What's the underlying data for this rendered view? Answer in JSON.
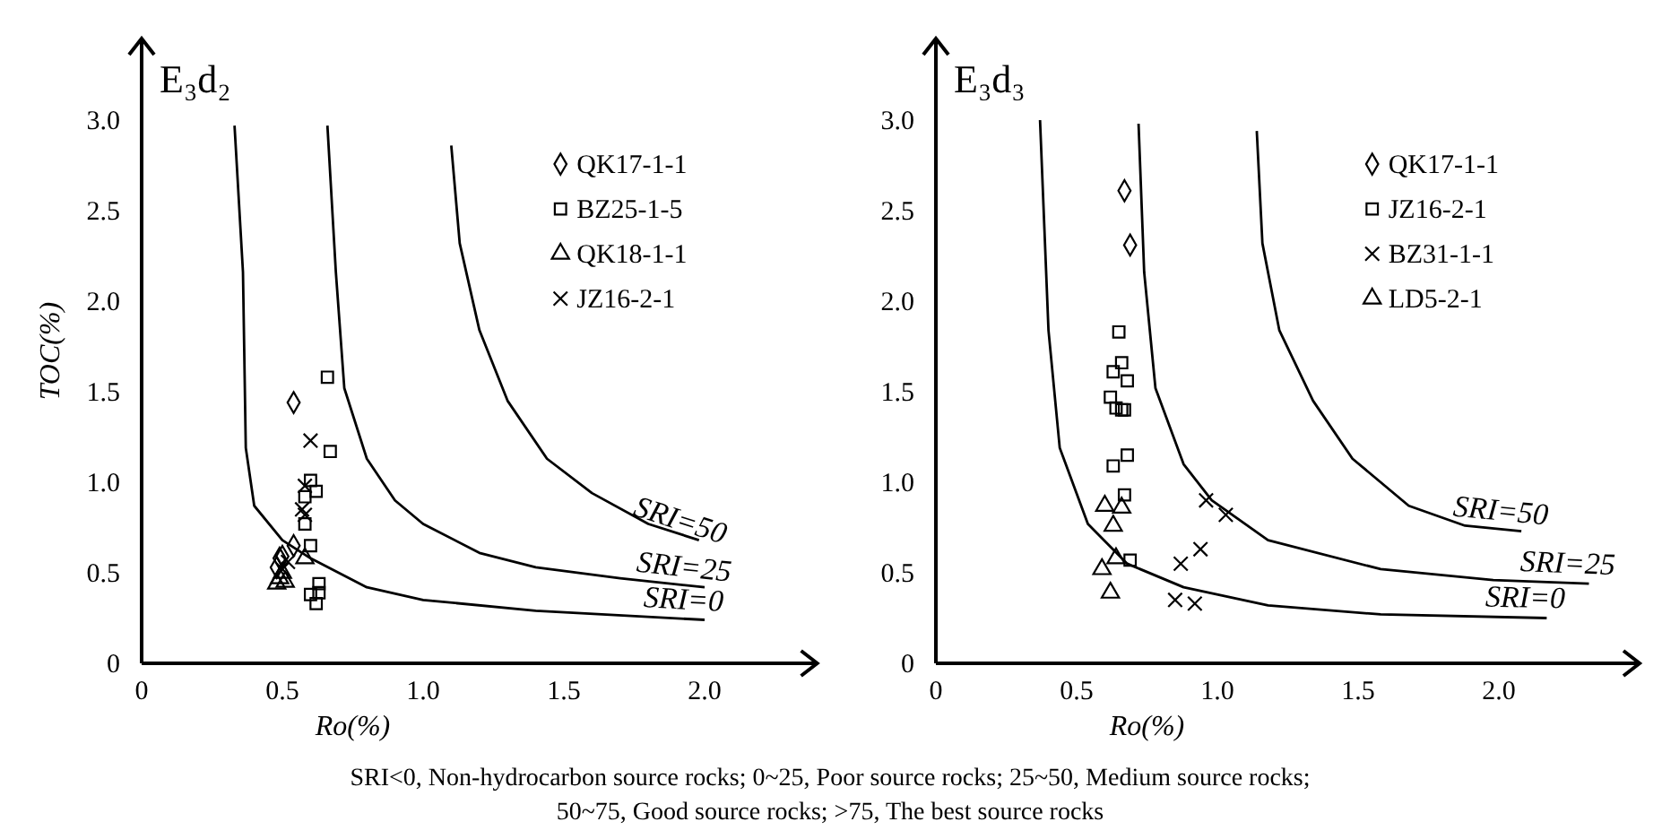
{
  "chart_data": [
    {
      "type": "scatter",
      "title": "E₃d₂",
      "xlabel": "Ro(%)",
      "ylabel": "TOC(%)",
      "xlim": [
        0,
        2.4
      ],
      "ylim": [
        0,
        3.45
      ],
      "xticks": [
        0,
        {
          "value": 0.5,
          "label": "0.5"
        },
        {
          "value": 1,
          "label": "1.0"
        },
        {
          "value": 1.5,
          "label": "1.5"
        },
        {
          "value": 2,
          "label": "2.0"
        }
      ],
      "yticks": [
        0,
        {
          "value": 0.5,
          "label": "0.5"
        },
        {
          "value": 1,
          "label": "1.0"
        },
        {
          "value": 1.5,
          "label": "1.5"
        },
        {
          "value": 2,
          "label": "2.0"
        },
        {
          "value": 2.5,
          "label": "2.5"
        },
        {
          "value": 3,
          "label": "3.0"
        }
      ],
      "legend": "top right",
      "grid": false,
      "annotations": [
        "SRI<0, Non-hydrocarbon source rocks; 0~25, Poor source rocks; 25~50, Medium source rocks;",
        "50~75, Good source rocks; >75, The best source rocks"
      ],
      "series": [
        {
          "name": "QK17-1-1",
          "marker": "diamond",
          "color": "#000000",
          "x": [
            0.54,
            0.48,
            0.5,
            0.54,
            0.49
          ],
          "values": [
            1.44,
            0.53,
            0.59,
            0.65,
            0.58
          ]
        },
        {
          "name": "BZ25-1-5",
          "marker": "square",
          "color": "#000000",
          "x": [
            0.66,
            0.67,
            0.6,
            0.62,
            0.58,
            0.58,
            0.6,
            0.6,
            0.63,
            0.63,
            0.62
          ],
          "values": [
            1.58,
            1.17,
            1.01,
            0.95,
            0.92,
            0.77,
            0.65,
            0.38,
            0.44,
            0.39,
            0.33
          ]
        },
        {
          "name": "QK18-1-1",
          "marker": "triangle",
          "color": "#000000",
          "x": [
            0.48,
            0.51,
            0.58,
            0.5,
            0.49
          ],
          "values": [
            0.44,
            0.45,
            0.58,
            0.5,
            0.47
          ]
        },
        {
          "name": "JZ16-2-1",
          "marker": "cross",
          "color": "#000000",
          "x": [
            0.6,
            0.58,
            0.57,
            0.58,
            0.52,
            0.5
          ],
          "values": [
            1.23,
            0.98,
            0.85,
            0.82,
            0.56,
            0.52
          ]
        },
        {
          "name": "SRI=50",
          "type": "line",
          "color": "#000000",
          "x": [
            1.1,
            1.13,
            1.2,
            1.3,
            1.44,
            1.6,
            1.8,
            1.98
          ],
          "values": [
            2.86,
            2.32,
            1.84,
            1.45,
            1.13,
            0.94,
            0.77,
            0.68
          ]
        },
        {
          "name": "SRI=25",
          "type": "line",
          "color": "#000000",
          "x": [
            0.66,
            0.69,
            0.72,
            0.8,
            0.9,
            1.0,
            1.2,
            1.4,
            1.7,
            2.0
          ],
          "values": [
            2.97,
            2.16,
            1.52,
            1.13,
            0.9,
            0.77,
            0.61,
            0.53,
            0.47,
            0.42
          ]
        },
        {
          "name": "SRI=0",
          "type": "line",
          "color": "#000000",
          "x": [
            0.33,
            0.36,
            0.37,
            0.4,
            0.5,
            0.6,
            0.8,
            1.0,
            1.4,
            2.0
          ],
          "values": [
            2.97,
            2.16,
            1.19,
            0.87,
            0.68,
            0.58,
            0.42,
            0.35,
            0.29,
            0.24
          ]
        }
      ]
    },
    {
      "type": "scatter",
      "title": "E₃d₃",
      "xlabel": "Ro(%)",
      "xlim": [
        0,
        2.5
      ],
      "ylim": [
        0,
        3.45
      ],
      "xticks": [
        0,
        {
          "value": 0.5,
          "label": "0.5"
        },
        {
          "value": 1,
          "label": "1.0"
        },
        {
          "value": 1.5,
          "label": "1.5"
        },
        {
          "value": 2,
          "label": "2.0"
        }
      ],
      "yticks": [
        0,
        {
          "value": 0.5,
          "label": "0.5"
        },
        {
          "value": 1,
          "label": "1.0"
        },
        {
          "value": 1.5,
          "label": "1.5"
        },
        {
          "value": 2,
          "label": "2.0"
        },
        {
          "value": 2.5,
          "label": "2.5"
        },
        {
          "value": 3,
          "label": "3.0"
        }
      ],
      "legend": "top right",
      "grid": false,
      "series": [
        {
          "name": "QK17-1-1",
          "marker": "diamond",
          "color": "#000000",
          "x": [
            0.67,
            0.69
          ],
          "values": [
            2.61,
            2.31
          ]
        },
        {
          "name": "JZ16-2-1",
          "marker": "square",
          "color": "#000000",
          "x": [
            0.65,
            0.66,
            0.63,
            0.68,
            0.62,
            0.64,
            0.67,
            0.66,
            0.63,
            0.68,
            0.67,
            0.69
          ],
          "values": [
            1.83,
            1.66,
            1.61,
            1.56,
            1.47,
            1.41,
            1.4,
            1.4,
            1.09,
            1.15,
            0.93,
            0.57
          ]
        },
        {
          "name": "BZ31-1-1",
          "marker": "cross",
          "color": "#000000",
          "x": [
            0.96,
            1.03,
            0.94,
            0.87,
            0.85,
            0.92
          ],
          "values": [
            0.9,
            0.82,
            0.63,
            0.55,
            0.35,
            0.33
          ]
        },
        {
          "name": "LD5-2-1",
          "marker": "triangle",
          "color": "#000000",
          "x": [
            0.6,
            0.66,
            0.63,
            0.64,
            0.59,
            0.62
          ],
          "values": [
            0.87,
            0.86,
            0.76,
            0.58,
            0.52,
            0.39
          ]
        },
        {
          "name": "SRI=50",
          "type": "line",
          "color": "#000000",
          "x": [
            1.14,
            1.16,
            1.22,
            1.34,
            1.48,
            1.68,
            1.88,
            2.08
          ],
          "values": [
            2.94,
            2.32,
            1.84,
            1.45,
            1.13,
            0.87,
            0.76,
            0.73
          ]
        },
        {
          "name": "SRI=25",
          "type": "line",
          "color": "#000000",
          "x": [
            0.72,
            0.74,
            0.78,
            0.88,
            0.98,
            1.18,
            1.58,
            1.98,
            2.32
          ],
          "values": [
            2.98,
            2.16,
            1.52,
            1.1,
            0.9,
            0.68,
            0.52,
            0.46,
            0.44
          ]
        },
        {
          "name": "SRI=0",
          "type": "line",
          "color": "#000000",
          "x": [
            0.37,
            0.4,
            0.44,
            0.54,
            0.68,
            0.88,
            1.18,
            1.58,
            2.17
          ],
          "values": [
            3.0,
            1.84,
            1.19,
            0.77,
            0.55,
            0.42,
            0.32,
            0.27,
            0.25
          ]
        }
      ]
    }
  ]
}
